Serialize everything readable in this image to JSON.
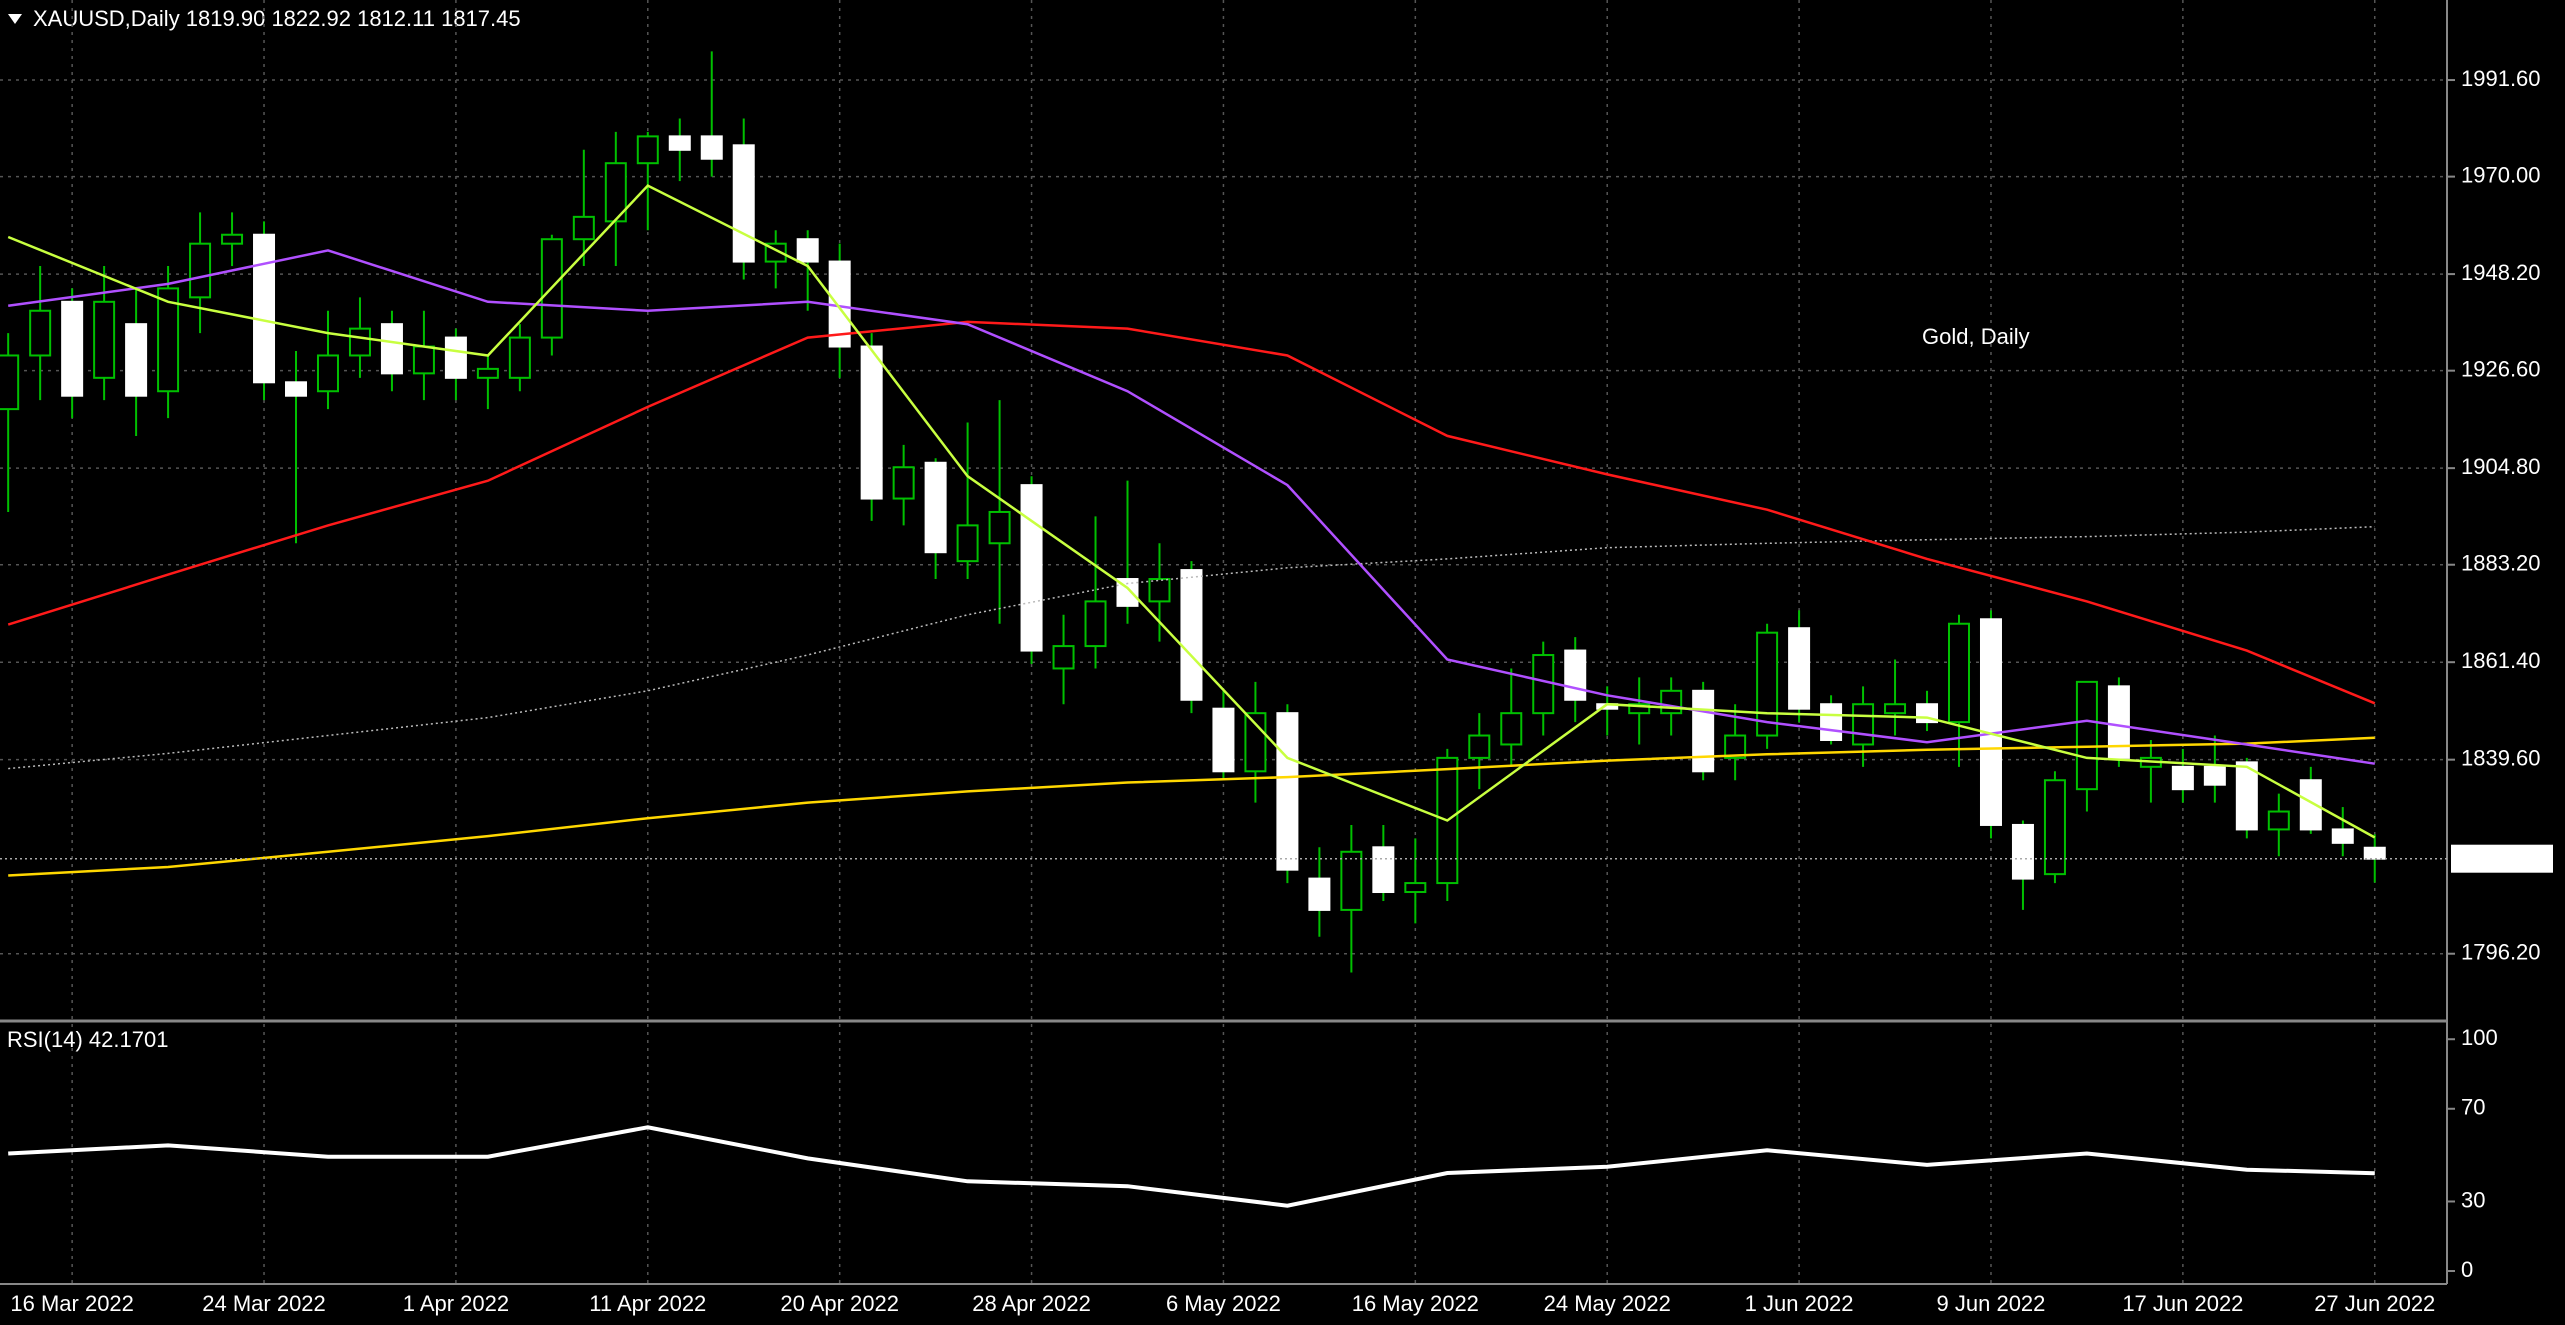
{
  "header": "XAUUSD,Daily  1819.90 1822.92 1812.11 1817.45",
  "chart_data": [
    {
      "type": "candlestick",
      "watermark": "Gold, Daily",
      "categories": [
        null,
        null,
        "16 Mar 2022",
        null,
        null,
        null,
        null,
        null,
        "24 Mar 2022",
        null,
        null,
        null,
        null,
        null,
        "1 Apr 2022",
        null,
        null,
        null,
        null,
        null,
        "11 Apr 2022",
        null,
        null,
        null,
        null,
        null,
        "20 Apr 2022",
        null,
        null,
        null,
        null,
        null,
        "28 Apr 2022",
        null,
        null,
        null,
        null,
        null,
        "6 May 2022",
        null,
        null,
        null,
        null,
        null,
        "16 May 2022",
        null,
        null,
        null,
        null,
        null,
        "24 May 2022",
        null,
        null,
        null,
        null,
        null,
        "1 Jun 2022",
        null,
        null,
        null,
        null,
        null,
        "9 Jun 2022",
        null,
        null,
        null,
        null,
        null,
        "17 Jun 2022",
        null,
        null,
        null,
        null,
        null,
        "27 Jun 2022"
      ],
      "open": [
        1918,
        1930,
        1942,
        1925,
        1937,
        1922,
        1943,
        1955,
        1957,
        1924,
        1922,
        1930,
        1937,
        1926,
        1934,
        1925,
        1925,
        1934,
        1956,
        1960,
        1973,
        1979,
        1979,
        1977,
        1951,
        1956,
        1951,
        1932,
        1898,
        1906,
        1884,
        1888,
        1901,
        1860,
        1865,
        1880,
        1875,
        1882,
        1851,
        1837,
        1850,
        1813,
        1806,
        1820,
        1810,
        1812,
        1840,
        1843,
        1850,
        1864,
        1852,
        1850,
        1850,
        1855,
        1840,
        1845,
        1869,
        1852,
        1843,
        1850,
        1852,
        1848,
        1871,
        1825,
        1814,
        1833,
        1856,
        1838,
        1838,
        1838,
        1839,
        1824,
        1835,
        1824,
        1819.9
      ],
      "high": [
        1935,
        1950,
        1945,
        1950,
        1945,
        1950,
        1962,
        1962,
        1960,
        1931,
        1940,
        1943,
        1940,
        1940,
        1936,
        1930,
        1937,
        1957,
        1976,
        1980,
        1980,
        1983,
        1998,
        1983,
        1958,
        1958,
        1955,
        1935,
        1910,
        1907,
        1915,
        1920,
        1903,
        1872,
        1894,
        1902,
        1888,
        1884,
        1855,
        1857,
        1852,
        1820,
        1825,
        1825,
        1822,
        1842,
        1850,
        1860,
        1866,
        1867,
        1856,
        1858,
        1858,
        1857,
        1852,
        1870,
        1873,
        1854,
        1856,
        1862,
        1855,
        1872,
        1873,
        1826,
        1837,
        1857,
        1858,
        1844,
        1842,
        1845,
        1840,
        1832,
        1838,
        1829,
        1822.92
      ],
      "low": [
        1895,
        1920,
        1916,
        1920,
        1912,
        1916,
        1935,
        1950,
        1920,
        1888,
        1918,
        1925,
        1922,
        1920,
        1920,
        1918,
        1922,
        1930,
        1950,
        1950,
        1958,
        1969,
        1970,
        1947,
        1945,
        1940,
        1925,
        1893,
        1892,
        1880,
        1880,
        1870,
        1861,
        1852,
        1860,
        1870,
        1866,
        1850,
        1835,
        1830,
        1812,
        1800,
        1792,
        1808,
        1803,
        1808,
        1833,
        1838,
        1845,
        1848,
        1845,
        1843,
        1845,
        1835,
        1835,
        1842,
        1848,
        1843,
        1838,
        1845,
        1846,
        1838,
        1822,
        1806,
        1812,
        1828,
        1838,
        1830,
        1830,
        1830,
        1822,
        1818,
        1823,
        1818,
        1812.11
      ],
      "close": [
        1930,
        1940,
        1921,
        1942,
        1921,
        1945,
        1955,
        1957,
        1924,
        1921,
        1930,
        1936,
        1926,
        1932,
        1925,
        1927,
        1934,
        1956,
        1961,
        1973,
        1979,
        1976,
        1974,
        1951,
        1955,
        1951,
        1932,
        1898,
        1905,
        1886,
        1892,
        1895,
        1864,
        1865,
        1875,
        1874,
        1880,
        1853,
        1837,
        1850,
        1815,
        1806,
        1819,
        1810,
        1812,
        1840,
        1845,
        1850,
        1863,
        1853,
        1851,
        1852,
        1855,
        1837,
        1845,
        1868,
        1851,
        1844,
        1852,
        1852,
        1848,
        1870,
        1825,
        1813,
        1835,
        1857,
        1840,
        1840,
        1833,
        1834,
        1824,
        1828,
        1824,
        1821,
        1817.45
      ],
      "up_color": "#00c000",
      "down_color": "#ffffff",
      "ylim": [
        1781.6,
        2009.5
      ],
      "yticks": [
        {
          "value": 1991.6,
          "label": "1991.60"
        },
        {
          "value": 1970,
          "label": "1970.00"
        },
        {
          "value": 1948.2,
          "label": "1948.20"
        },
        {
          "value": 1926.6,
          "label": "1926.60"
        },
        {
          "value": 1904.8,
          "label": "1904.80"
        },
        {
          "value": 1883.2,
          "label": "1883.20"
        },
        {
          "value": 1861.4,
          "label": "1861.40"
        },
        {
          "value": 1839.6,
          "label": "1839.60"
        },
        {
          "value": 1796.2,
          "label": "1796.20"
        }
      ],
      "current_price": 1817.45,
      "grid": true,
      "series": [
        {
          "color": "#ffd700",
          "x": [
            0,
            5,
            10,
            15,
            20,
            25,
            30,
            35,
            40,
            45,
            50,
            55,
            60,
            65,
            70,
            74
          ],
          "values": [
            1813.7,
            1815.6,
            1819,
            1822.5,
            1826.5,
            1830,
            1832.5,
            1834.5,
            1835.7,
            1837.5,
            1839.4,
            1840.8,
            1841.8,
            1842.5,
            1843.2,
            1844.5
          ]
        },
        {
          "color": "#bbbbbb",
          "style": "dotted",
          "x": [
            0,
            5,
            10,
            15,
            20,
            25,
            30,
            35,
            40,
            45,
            50,
            55,
            60,
            65,
            70,
            74
          ],
          "values": [
            1837.6,
            1841,
            1845,
            1849,
            1855,
            1863,
            1872,
            1879,
            1882.5,
            1884.5,
            1887,
            1888,
            1888.8,
            1889.5,
            1890.5,
            1891.7
          ]
        },
        {
          "color": "#ff1a1a",
          "x": [
            0,
            5,
            10,
            15,
            20,
            25,
            30,
            35,
            40,
            45,
            50,
            55,
            60,
            65,
            70,
            74
          ],
          "values": [
            1869.8,
            1881,
            1892,
            1902,
            1918.5,
            1934,
            1937.5,
            1936,
            1930,
            1912,
            1903.4,
            1895.5,
            1884.5,
            1875,
            1864,
            1852.2
          ]
        },
        {
          "color": "#b050ff",
          "x": [
            0,
            5,
            10,
            15,
            20,
            25,
            30,
            35,
            40,
            45,
            50,
            55,
            60,
            65,
            70,
            74
          ],
          "values": [
            1941.1,
            1946,
            1953.5,
            1942,
            1940,
            1942,
            1937,
            1922,
            1901,
            1862,
            1854,
            1848,
            1843.5,
            1848.3,
            1843,
            1838.7
          ]
        },
        {
          "color": "#c8ff40",
          "x": [
            0,
            5,
            10,
            15,
            20,
            25,
            30,
            35,
            40,
            45,
            50,
            55,
            60,
            65,
            70,
            74
          ],
          "values": [
            1956.5,
            1942,
            1935,
            1930,
            1968,
            1950,
            1903,
            1878,
            1840,
            1826,
            1852,
            1850,
            1849,
            1840,
            1838,
            1822.2
          ]
        }
      ]
    },
    {
      "type": "line",
      "title": "RSI(14) 42.1701",
      "ylim": [
        -5.6,
        107
      ],
      "yticks": [
        0,
        30,
        70,
        100
      ],
      "series": [
        {
          "color": "#ffffff",
          "x": [
            0,
            5,
            10,
            15,
            20,
            25,
            30,
            35,
            40,
            45,
            50,
            55,
            60,
            65,
            70,
            74
          ],
          "values": [
            50.7,
            54.2,
            49.3,
            49.3,
            62,
            48.6,
            38.7,
            36.6,
            28.2,
            42.3,
            45,
            52.1,
            45.8,
            50.7,
            43.7,
            42.1701
          ]
        }
      ]
    }
  ]
}
